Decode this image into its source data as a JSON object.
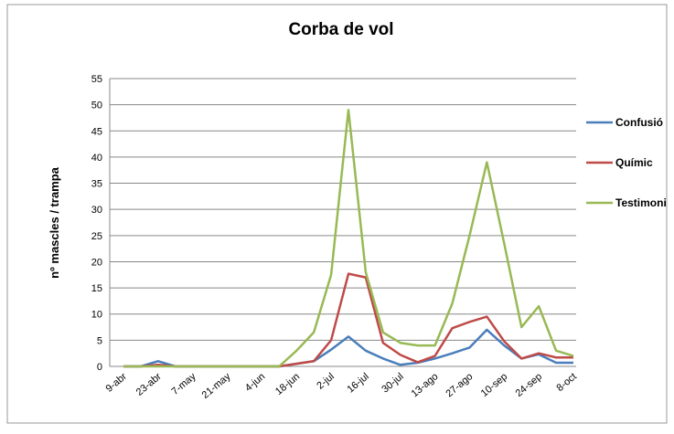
{
  "chart_data": {
    "type": "line",
    "title": "Corba de vol",
    "y_label": "nº mascles / trampa",
    "categories": [
      "9-abr",
      null,
      "23-abr",
      null,
      "7-may",
      null,
      "21-may",
      null,
      "4-jun",
      null,
      "18-jun",
      null,
      "2-jul",
      null,
      "16-jul",
      null,
      "30-jul",
      null,
      "13-ago",
      null,
      "27-ago",
      null,
      "10-sep",
      null,
      "24-sep",
      null,
      "8-oct"
    ],
    "series": [
      {
        "name": "Confusió",
        "color": "#4a7ebb",
        "values": [
          0,
          0,
          1,
          0,
          0,
          0,
          0,
          0,
          0,
          0,
          0.5,
          1,
          3.2,
          5.7,
          3,
          1.5,
          0.3,
          0.7,
          1.5,
          2.5,
          3.6,
          7,
          4,
          1.5,
          2.3,
          0.7,
          0.7
        ]
      },
      {
        "name": "Químic",
        "color": "#be4b48",
        "values": [
          0,
          0,
          0.3,
          0,
          0,
          0,
          0,
          0,
          0,
          0,
          0.5,
          1,
          5,
          17.7,
          17,
          4.5,
          2.2,
          0.8,
          2,
          7.3,
          8.5,
          9.5,
          4.8,
          1.5,
          2.5,
          1.7,
          1.7
        ]
      },
      {
        "name": "Testimoni",
        "color": "#98b954",
        "values": [
          0,
          0,
          0,
          0,
          0,
          0,
          0,
          0,
          0,
          0,
          3,
          6.5,
          17.5,
          49,
          18,
          6.5,
          4.5,
          4,
          4,
          12,
          25,
          39,
          23.5,
          7.5,
          11.5,
          3,
          2
        ]
      }
    ],
    "ylim": [
      0,
      55
    ],
    "yticks": [
      0,
      5,
      10,
      15,
      20,
      25,
      30,
      35,
      40,
      45,
      50,
      55
    ],
    "grid": true,
    "legend": "right"
  }
}
